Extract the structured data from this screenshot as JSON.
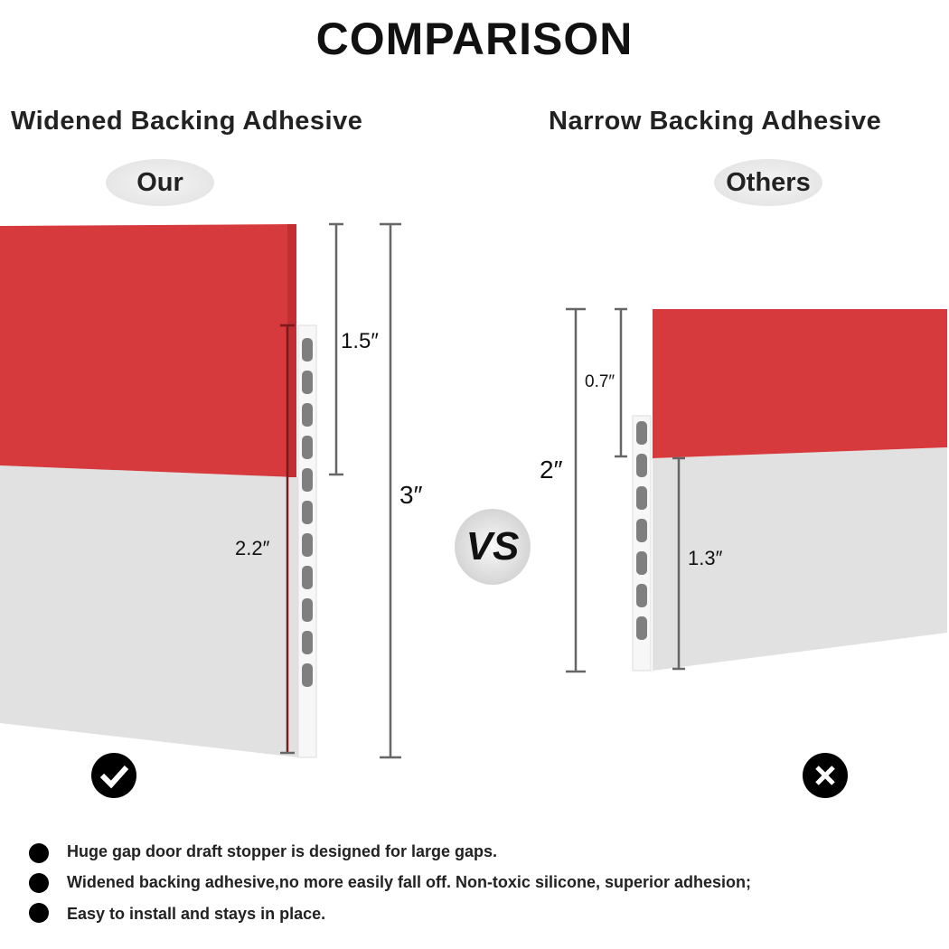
{
  "title": "COMPARISON",
  "left": {
    "heading": "Widened Backing Adhesive",
    "badge": "Our",
    "dims": {
      "top": "1.5″",
      "total": "3″",
      "adhesive": "2.2″"
    },
    "verdict_icon": "check-icon"
  },
  "right": {
    "heading": "Narrow Backing Adhesive",
    "badge": "Others",
    "dims": {
      "top": "0.7″",
      "total": "2″",
      "bottom": "1.3″"
    },
    "verdict_icon": "cross-icon"
  },
  "vs": "VS",
  "bullets": [
    "Huge gap door draft stopper is designed for large gaps.",
    "Widened backing adhesive,no more easily fall off. Non-toxic silicone, superior adhesion;",
    "Easy to install and stays in place."
  ],
  "colors": {
    "red": "#d63a3d",
    "gray": "#e2e2e2",
    "slot": "#7f7f7f"
  }
}
